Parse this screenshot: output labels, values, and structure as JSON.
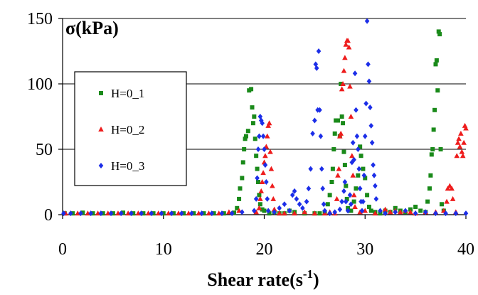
{
  "chart_data": {
    "type": "scatter",
    "title": "",
    "ylabel": "σ(kPa)",
    "xlabel_main": "Shear rate(s",
    "xlabel_sup": "-1",
    "xlabel_close": ")",
    "xlim": [
      0,
      40
    ],
    "ylim": [
      0,
      150
    ],
    "xticks": [
      "0",
      "10",
      "20",
      "30",
      "40"
    ],
    "yticks": [
      "0",
      "50",
      "100",
      "150"
    ],
    "grid": "horizontal",
    "legend_position": "left",
    "series": [
      {
        "name": "H=0_1",
        "color": "#1a8a1a",
        "marker": "square",
        "points": [
          [
            0.2,
            1
          ],
          [
            1,
            1
          ],
          [
            2,
            1.5
          ],
          [
            3,
            1
          ],
          [
            4,
            1
          ],
          [
            5,
            1
          ],
          [
            6,
            1.5
          ],
          [
            7,
            1
          ],
          [
            8,
            1
          ],
          [
            9,
            1
          ],
          [
            10,
            1
          ],
          [
            11,
            1
          ],
          [
            12,
            1
          ],
          [
            13,
            1
          ],
          [
            14,
            1
          ],
          [
            15,
            1
          ],
          [
            16,
            1
          ],
          [
            17,
            1.5
          ],
          [
            17.3,
            5
          ],
          [
            17.5,
            12
          ],
          [
            17.6,
            20
          ],
          [
            17.8,
            28
          ],
          [
            17.9,
            40
          ],
          [
            18,
            50
          ],
          [
            18.1,
            58
          ],
          [
            18.2,
            60
          ],
          [
            18.4,
            64
          ],
          [
            18.5,
            95
          ],
          [
            18.7,
            96
          ],
          [
            18.8,
            82
          ],
          [
            18.9,
            70
          ],
          [
            19,
            75
          ],
          [
            19.1,
            58
          ],
          [
            19.2,
            45
          ],
          [
            19.3,
            35
          ],
          [
            19.4,
            25
          ],
          [
            19.5,
            15
          ],
          [
            19.6,
            8
          ],
          [
            19.8,
            4
          ],
          [
            20,
            3
          ],
          [
            20.5,
            1
          ],
          [
            21,
            2
          ],
          [
            21.5,
            1
          ],
          [
            22,
            1
          ],
          [
            22.5,
            3
          ],
          [
            23,
            2
          ],
          [
            24,
            1
          ],
          [
            25,
            1
          ],
          [
            25.5,
            1
          ],
          [
            26,
            2
          ],
          [
            26.3,
            8
          ],
          [
            26.5,
            15
          ],
          [
            26.7,
            25
          ],
          [
            26.8,
            35
          ],
          [
            26.9,
            50
          ],
          [
            27,
            62
          ],
          [
            27.1,
            72
          ],
          [
            27.3,
            72
          ],
          [
            27.5,
            60
          ],
          [
            27.6,
            100
          ],
          [
            27.7,
            75
          ],
          [
            27.8,
            70
          ],
          [
            27.9,
            48
          ],
          [
            28,
            38
          ],
          [
            28.1,
            22
          ],
          [
            28.2,
            12
          ],
          [
            28.3,
            5
          ],
          [
            28.6,
            3
          ],
          [
            28.9,
            10
          ],
          [
            29.1,
            20
          ],
          [
            29.3,
            30
          ],
          [
            29.5,
            52
          ],
          [
            29.6,
            45
          ],
          [
            29.8,
            35
          ],
          [
            30,
            28
          ],
          [
            30.2,
            15
          ],
          [
            30.4,
            6
          ],
          [
            30.6,
            3
          ],
          [
            31,
            2
          ],
          [
            31.5,
            1
          ],
          [
            32,
            3
          ],
          [
            32.5,
            2
          ],
          [
            33,
            5
          ],
          [
            33.5,
            3
          ],
          [
            34,
            2
          ],
          [
            34.5,
            4
          ],
          [
            35,
            6
          ],
          [
            35.5,
            3
          ],
          [
            36,
            2
          ],
          [
            36.2,
            10
          ],
          [
            36.4,
            20
          ],
          [
            36.5,
            30
          ],
          [
            36.6,
            46
          ],
          [
            36.7,
            50
          ],
          [
            36.8,
            65
          ],
          [
            36.9,
            80
          ],
          [
            37,
            115
          ],
          [
            37.1,
            118
          ],
          [
            37.2,
            95
          ],
          [
            37.3,
            140
          ],
          [
            37.4,
            138
          ],
          [
            37.5,
            50
          ],
          [
            37.6,
            8
          ],
          [
            37.8,
            3
          ]
        ]
      },
      {
        "name": "H=0_2",
        "color": "#ee1c1c",
        "marker": "triangle",
        "points": [
          [
            0.3,
            1
          ],
          [
            1.5,
            1
          ],
          [
            2.5,
            1
          ],
          [
            3.5,
            1
          ],
          [
            4.5,
            1
          ],
          [
            5.5,
            1
          ],
          [
            6.5,
            1
          ],
          [
            7.5,
            1
          ],
          [
            8.5,
            1
          ],
          [
            9.5,
            1
          ],
          [
            10.5,
            1
          ],
          [
            11.5,
            1
          ],
          [
            12.5,
            1
          ],
          [
            13.5,
            1
          ],
          [
            14.5,
            1
          ],
          [
            15.5,
            1
          ],
          [
            16.5,
            2
          ],
          [
            17.5,
            3
          ],
          [
            19.2,
            2
          ],
          [
            19.5,
            5
          ],
          [
            19.6,
            12
          ],
          [
            19.7,
            18
          ],
          [
            19.8,
            25
          ],
          [
            19.9,
            32
          ],
          [
            20,
            40
          ],
          [
            20.1,
            45
          ],
          [
            20.2,
            52
          ],
          [
            20.3,
            60
          ],
          [
            20.4,
            68
          ],
          [
            20.5,
            70
          ],
          [
            20.6,
            48
          ],
          [
            20.7,
            35
          ],
          [
            20.8,
            22
          ],
          [
            20.9,
            12
          ],
          [
            21,
            4
          ],
          [
            21.5,
            1
          ],
          [
            22,
            1
          ],
          [
            23,
            1
          ],
          [
            24,
            2
          ],
          [
            25,
            1
          ],
          [
            26,
            1
          ],
          [
            26.5,
            2
          ],
          [
            27,
            1
          ],
          [
            27.2,
            12
          ],
          [
            27.3,
            30
          ],
          [
            27.4,
            35
          ],
          [
            27.5,
            60
          ],
          [
            27.6,
            62
          ],
          [
            27.7,
            96
          ],
          [
            27.8,
            100
          ],
          [
            27.9,
            110
          ],
          [
            28,
            120
          ],
          [
            28.1,
            130
          ],
          [
            28.2,
            133
          ],
          [
            28.3,
            133
          ],
          [
            28.4,
            128
          ],
          [
            28.5,
            98
          ],
          [
            28.6,
            75
          ],
          [
            28.7,
            45
          ],
          [
            28.8,
            30
          ],
          [
            28.9,
            15
          ],
          [
            29,
            6
          ],
          [
            29.5,
            2
          ],
          [
            30,
            3
          ],
          [
            31,
            1
          ],
          [
            32,
            4
          ],
          [
            32.5,
            2
          ],
          [
            33,
            3
          ],
          [
            33.5,
            2
          ],
          [
            34,
            3
          ],
          [
            34.5,
            2
          ],
          [
            35,
            1
          ],
          [
            36,
            2
          ],
          [
            37,
            2
          ],
          [
            37.8,
            3
          ],
          [
            38.1,
            10
          ],
          [
            38.2,
            20
          ],
          [
            38.4,
            22
          ],
          [
            38.6,
            20
          ],
          [
            38.7,
            12
          ],
          [
            39,
            2
          ],
          [
            39.1,
            45
          ],
          [
            39.2,
            55
          ],
          [
            39.3,
            58
          ],
          [
            39.4,
            52
          ],
          [
            39.5,
            62
          ],
          [
            39.6,
            48
          ],
          [
            39.7,
            45
          ],
          [
            39.8,
            55
          ],
          [
            39.9,
            68
          ],
          [
            40,
            66
          ]
        ]
      },
      {
        "name": "H=0_3",
        "color": "#1c2ee8",
        "marker": "diamond",
        "points": [
          [
            0.1,
            1
          ],
          [
            0.8,
            1
          ],
          [
            1.8,
            1
          ],
          [
            2.8,
            1
          ],
          [
            3.8,
            1
          ],
          [
            4.8,
            1
          ],
          [
            5.8,
            1
          ],
          [
            6.8,
            1
          ],
          [
            7.8,
            1
          ],
          [
            8.8,
            1
          ],
          [
            9.8,
            1
          ],
          [
            10.8,
            1
          ],
          [
            11.8,
            1
          ],
          [
            12.8,
            1
          ],
          [
            13.8,
            1
          ],
          [
            14.8,
            1
          ],
          [
            15.8,
            1
          ],
          [
            16.8,
            1
          ],
          [
            17.8,
            2
          ],
          [
            19,
            3
          ],
          [
            19.2,
            12
          ],
          [
            19.3,
            28
          ],
          [
            19.4,
            50
          ],
          [
            19.5,
            60
          ],
          [
            19.6,
            75
          ],
          [
            19.7,
            72
          ],
          [
            19.8,
            70
          ],
          [
            19.9,
            60
          ],
          [
            20,
            50
          ],
          [
            20.1,
            38
          ],
          [
            20.2,
            25
          ],
          [
            20.3,
            12
          ],
          [
            20.4,
            3
          ],
          [
            21,
            2
          ],
          [
            21.5,
            5
          ],
          [
            22,
            8
          ],
          [
            22.5,
            3
          ],
          [
            22.8,
            15
          ],
          [
            23,
            18
          ],
          [
            23.2,
            12
          ],
          [
            23.5,
            8
          ],
          [
            23.8,
            5
          ],
          [
            24.2,
            10
          ],
          [
            24.4,
            20
          ],
          [
            24.6,
            35
          ],
          [
            24.8,
            62
          ],
          [
            25,
            72
          ],
          [
            25.1,
            115
          ],
          [
            25.2,
            112
          ],
          [
            25.3,
            80
          ],
          [
            25.4,
            125
          ],
          [
            25.5,
            80
          ],
          [
            25.6,
            60
          ],
          [
            25.7,
            35
          ],
          [
            25.8,
            20
          ],
          [
            25.9,
            8
          ],
          [
            26,
            3
          ],
          [
            26.5,
            1
          ],
          [
            27,
            2
          ],
          [
            27.5,
            4
          ],
          [
            27.7,
            10
          ],
          [
            27.9,
            18
          ],
          [
            28,
            25
          ],
          [
            28.1,
            10
          ],
          [
            28.3,
            3
          ],
          [
            28.5,
            15
          ],
          [
            28.6,
            8
          ],
          [
            28.7,
            40
          ],
          [
            28.8,
            55
          ],
          [
            28.9,
            42
          ],
          [
            29,
            108
          ],
          [
            29.1,
            80
          ],
          [
            29.2,
            60
          ],
          [
            29.3,
            50
          ],
          [
            29.4,
            35
          ],
          [
            29.5,
            20
          ],
          [
            29.6,
            10
          ],
          [
            29.7,
            3
          ],
          [
            29.8,
            10
          ],
          [
            29.9,
            30
          ],
          [
            30,
            60
          ],
          [
            30.1,
            85
          ],
          [
            30.2,
            148
          ],
          [
            30.3,
            115
          ],
          [
            30.4,
            102
          ],
          [
            30.5,
            82
          ],
          [
            30.6,
            68
          ],
          [
            30.7,
            55
          ],
          [
            30.8,
            38
          ],
          [
            30.9,
            30
          ],
          [
            31,
            22
          ],
          [
            31.1,
            12
          ],
          [
            31.5,
            3
          ],
          [
            32,
            1
          ],
          [
            33,
            2
          ],
          [
            34,
            3
          ],
          [
            35,
            1
          ],
          [
            36,
            2
          ],
          [
            37,
            1
          ],
          [
            38,
            1
          ],
          [
            39,
            1
          ],
          [
            40,
            1
          ]
        ]
      }
    ]
  }
}
